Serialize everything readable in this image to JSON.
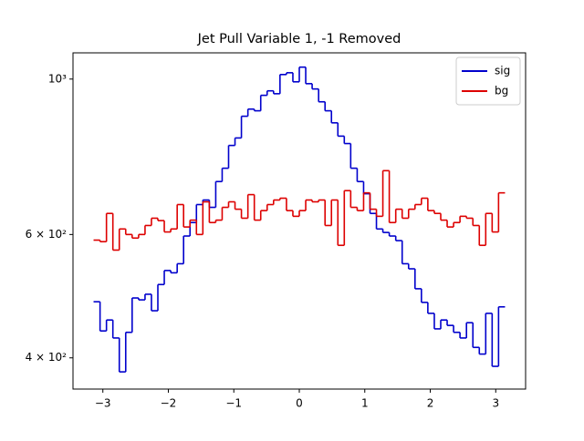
{
  "chart_data": {
    "type": "histogram",
    "title": "Jet Pull Variable 1, -1 Removed",
    "bins": [
      -3.142,
      -3.043,
      -2.945,
      -2.847,
      -2.749,
      -2.651,
      -2.553,
      -2.454,
      -2.356,
      -2.258,
      -2.16,
      -2.062,
      -1.963,
      -1.865,
      -1.767,
      -1.669,
      -1.571,
      -1.473,
      -1.374,
      -1.276,
      -1.178,
      -1.08,
      -0.982,
      -0.884,
      -0.785,
      -0.687,
      -0.589,
      -0.491,
      -0.393,
      -0.295,
      -0.196,
      -0.098,
      0,
      0.098,
      0.196,
      0.295,
      0.393,
      0.491,
      0.589,
      0.687,
      0.785,
      0.884,
      0.982,
      1.08,
      1.178,
      1.276,
      1.374,
      1.473,
      1.571,
      1.669,
      1.767,
      1.865,
      1.963,
      2.062,
      2.16,
      2.258,
      2.356,
      2.454,
      2.553,
      2.651,
      2.749,
      2.847,
      2.945,
      3.043,
      3.142
    ],
    "series": [
      {
        "name": "sig",
        "color": "#0000cc",
        "values": [
          481,
          437,
          453,
          427,
          382,
          435,
          487,
          484,
          493,
          467,
          509,
          533,
          529,
          545,
          597,
          624,
          662,
          672,
          656,
          714,
          746,
          804,
          824,
          885,
          906,
          901,
          948,
          962,
          953,
          1015,
          1021,
          991,
          1040,
          985,
          968,
          928,
          901,
          866,
          829,
          809,
          746,
          714,
          686,
          643,
          611,
          604,
          597,
          588,
          545,
          536,
          502,
          480,
          463,
          440,
          453,
          445,
          435,
          427,
          449,
          414,
          405,
          463,
          389,
          473
        ]
      },
      {
        "name": "bg",
        "color": "#dd0000",
        "values": [
          589,
          586,
          643,
          570,
          611,
          600,
          593,
          600,
          618,
          633,
          628,
          605,
          611,
          662,
          615,
          629,
          600,
          668,
          624,
          629,
          656,
          668,
          652,
          633,
          684,
          629,
          649,
          662,
          672,
          676,
          649,
          637,
          649,
          672,
          668,
          672,
          618,
          672,
          579,
          693,
          656,
          649,
          688,
          652,
          637,
          740,
          624,
          652,
          633,
          652,
          662,
          676,
          649,
          643,
          629,
          615,
          624,
          637,
          633,
          618,
          579,
          643,
          605,
          688
        ]
      }
    ],
    "xlim": [
      -3.456,
      3.456
    ],
    "xticks": [
      {
        "value": -3,
        "label": "−3"
      },
      {
        "value": -2,
        "label": "−2"
      },
      {
        "value": -1,
        "label": "−1"
      },
      0,
      1,
      2,
      3
    ],
    "ylim": [
      361,
      1090
    ],
    "log_y": true,
    "yticks": [
      {
        "value": 400,
        "label": "4 × 10²"
      },
      {
        "value": 600,
        "label": "6 × 10²"
      },
      {
        "value": 1000,
        "label": "10³"
      }
    ],
    "legend": "upper right"
  }
}
